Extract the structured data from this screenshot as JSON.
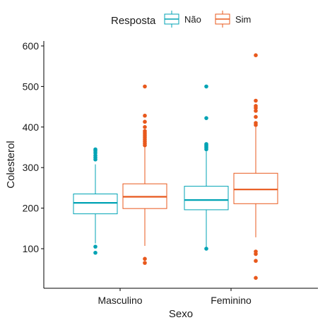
{
  "chart_data": {
    "type": "boxplot",
    "xlabel": "Sexo",
    "ylabel": "Colesterol",
    "ylim": [
      0,
      600
    ],
    "yticks": [
      100,
      200,
      300,
      400,
      500,
      600
    ],
    "grid": false,
    "legend": {
      "title": "Resposta",
      "placement": "top",
      "entries": [
        "Não",
        "Sim"
      ]
    },
    "categories": [
      "Masculino",
      "Feminino"
    ],
    "series": [
      {
        "name": "Não",
        "color": "#00A3B4",
        "boxes": [
          {
            "category": "Masculino",
            "whisker_low": 113,
            "q1": 186,
            "median": 213,
            "q3": 235,
            "whisker_high": 308,
            "outliers": [
              90,
              105,
              320,
              325,
              330,
              336,
              341,
              345
            ]
          },
          {
            "category": "Feminino",
            "whisker_low": 103,
            "q1": 196,
            "median": 220,
            "q3": 254,
            "whisker_high": 340,
            "outliers": [
              100,
              345,
              349,
              352,
              355,
              358,
              422,
              500
            ]
          }
        ]
      },
      {
        "name": "Sim",
        "color": "#E8581C",
        "boxes": [
          {
            "category": "Masculino",
            "whisker_low": 107,
            "q1": 199,
            "median": 228,
            "q3": 260,
            "whisker_high": 352,
            "outliers": [
              65,
              75,
              355,
              360,
              365,
              370,
              375,
              380,
              385,
              390,
              400,
              413,
              428,
              500
            ]
          },
          {
            "category": "Feminino",
            "whisker_low": 128,
            "q1": 211,
            "median": 246,
            "q3": 286,
            "whisker_high": 400,
            "outliers": [
              28,
              70,
              87,
              93,
              405,
              410,
              425,
              440,
              447,
              452,
              465,
              577
            ]
          }
        ]
      }
    ]
  }
}
